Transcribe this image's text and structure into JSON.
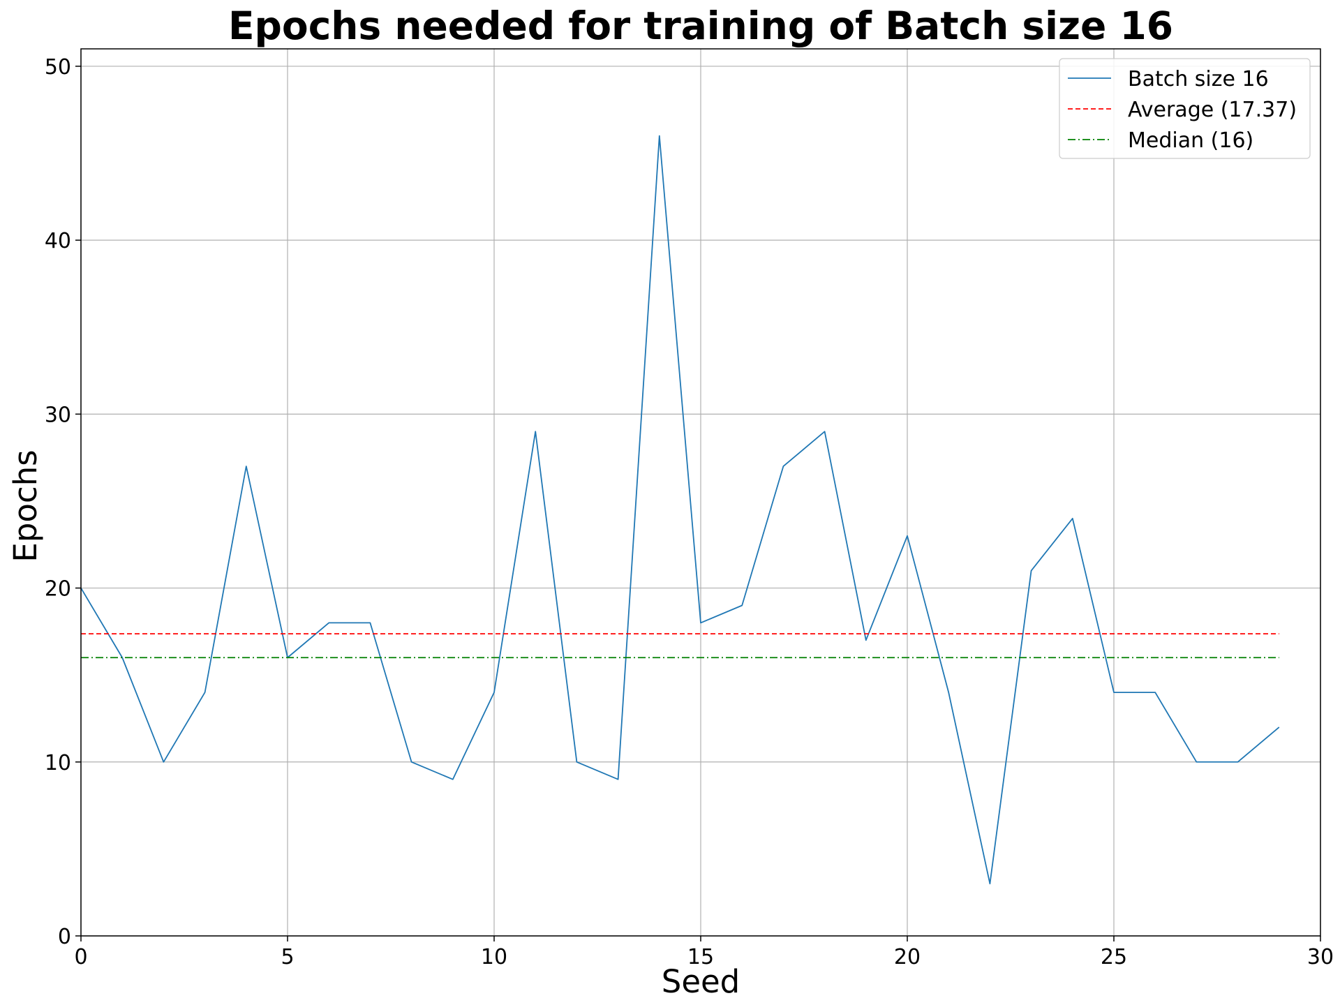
{
  "chart_data": {
    "type": "line",
    "title": "Epochs needed for training of Batch size 16",
    "xlabel": "Seed",
    "ylabel": "Epochs",
    "xlim": [
      0,
      30
    ],
    "ylim": [
      0,
      51
    ],
    "xticks": [
      0,
      5,
      10,
      15,
      20,
      25,
      30
    ],
    "yticks": [
      0,
      10,
      20,
      30,
      40,
      50
    ],
    "grid": true,
    "legend_position": "top-right",
    "series": [
      {
        "name": "Batch size 16",
        "color": "#1f77b4",
        "style": "solid",
        "x": [
          0,
          1,
          2,
          3,
          4,
          5,
          6,
          7,
          8,
          9,
          10,
          11,
          12,
          13,
          14,
          15,
          16,
          17,
          18,
          19,
          20,
          21,
          22,
          23,
          24,
          25,
          26,
          27,
          28,
          29
        ],
        "values": [
          20,
          16,
          10,
          14,
          27,
          16,
          18,
          18,
          10,
          9,
          14,
          29,
          10,
          9,
          46,
          18,
          19,
          27,
          29,
          17,
          23,
          14,
          3,
          21,
          24,
          14,
          14,
          10,
          10,
          12
        ]
      },
      {
        "name": "Average (17.37)",
        "color": "#ff0000",
        "style": "dashed",
        "x": [
          0,
          29
        ],
        "values": [
          17.37,
          17.37
        ]
      },
      {
        "name": "Median (16)",
        "color": "#008000",
        "style": "dashdot",
        "x": [
          0,
          29
        ],
        "values": [
          16,
          16
        ]
      }
    ]
  }
}
